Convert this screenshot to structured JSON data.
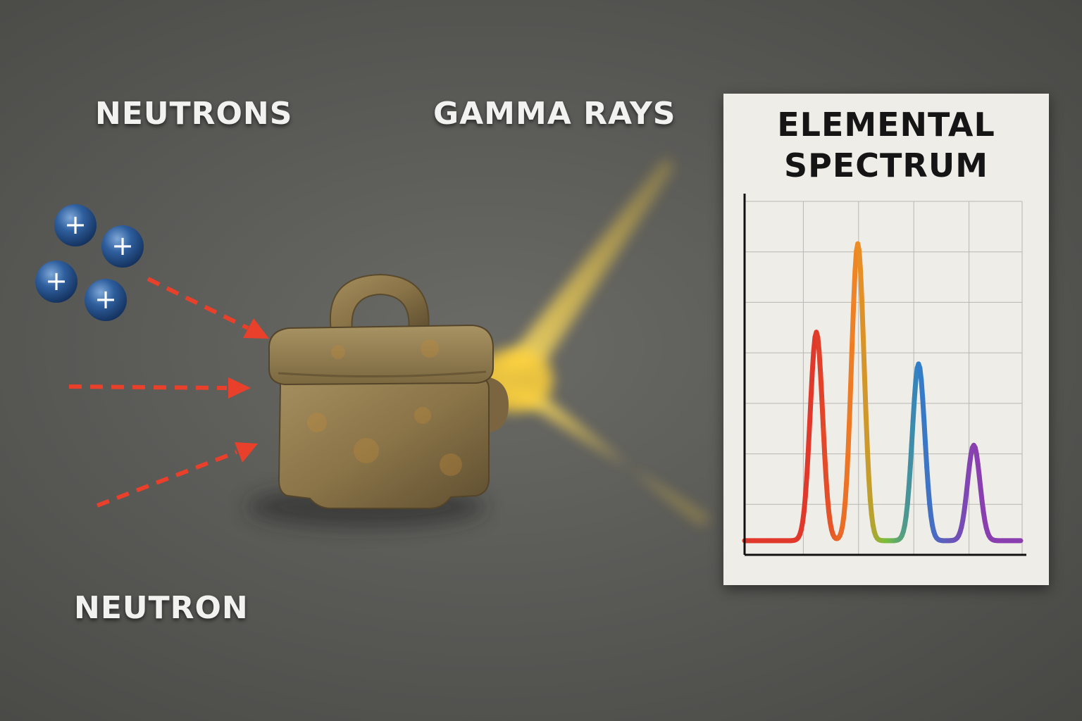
{
  "labels": {
    "neutrons": "NEUTRONS",
    "gamma_rays": "GAMMA RAYS",
    "neutron": "NEUTRON"
  },
  "panel": {
    "title_line1": "ELEMENTAL",
    "title_line2": "SPECTRUM"
  },
  "particles": [
    {
      "symbol": "+"
    },
    {
      "symbol": "+"
    },
    {
      "symbol": "+"
    },
    {
      "symbol": "+"
    }
  ],
  "colors": {
    "background": "#5a5a57",
    "arrow": "#e8402a",
    "particle": "#2f5f9e",
    "gamma_glow": "#ffd23a",
    "stone": "#8a7448",
    "panel": "#efede8"
  },
  "chart_data": {
    "type": "line",
    "title": "ELEMENTAL SPECTRUM",
    "xlabel": "",
    "ylabel": "",
    "xlim": [
      0,
      100
    ],
    "ylim": [
      0,
      100
    ],
    "grid": true,
    "peaks": [
      {
        "x": 26,
        "height": 59,
        "color": "#e0392b"
      },
      {
        "x": 41,
        "height": 84,
        "color": "#f08a24"
      },
      {
        "x": 63,
        "height": 50,
        "color": "#2f7fc8"
      },
      {
        "x": 83,
        "height": 27,
        "color": "#8a3fb0"
      }
    ],
    "baseline": 4
  }
}
